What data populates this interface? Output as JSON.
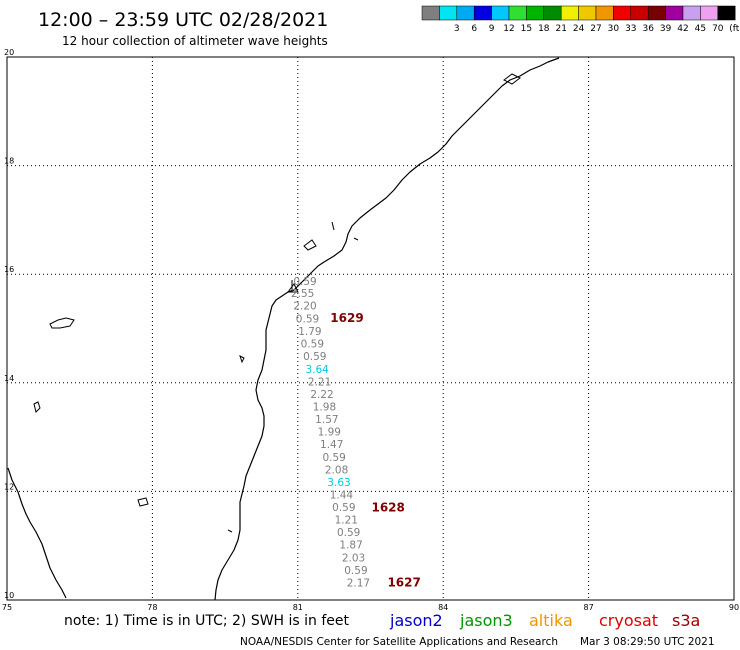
{
  "header": {
    "title": "12:00 – 23:59 UTC 02/28/2021",
    "subtitle": "12 hour collection of altimeter wave heights"
  },
  "color_scale": {
    "unit": "(ft)",
    "bins": [
      {
        "label": "",
        "color": "#7f7f7f"
      },
      {
        "label": "3",
        "color": "#00e5f0"
      },
      {
        "label": "6",
        "color": "#00aaf0"
      },
      {
        "label": "9",
        "color": "#0000e0"
      },
      {
        "label": "12",
        "color": "#00c8ff"
      },
      {
        "label": "15",
        "color": "#30e030"
      },
      {
        "label": "18",
        "color": "#00b400"
      },
      {
        "label": "21",
        "color": "#008c00"
      },
      {
        "label": "24",
        "color": "#f0f000"
      },
      {
        "label": "27",
        "color": "#f0c800"
      },
      {
        "label": "30",
        "color": "#f09600"
      },
      {
        "label": "33",
        "color": "#f00000"
      },
      {
        "label": "36",
        "color": "#c80000"
      },
      {
        "label": "39",
        "color": "#780000"
      },
      {
        "label": "42",
        "color": "#a000a0"
      },
      {
        "label": "45",
        "color": "#c8a0f0"
      },
      {
        "label": "70",
        "color": "#f0a0f0"
      },
      {
        "label": "",
        "color": "#000000"
      }
    ]
  },
  "map": {
    "lon_range": [
      75,
      90
    ],
    "lat_range": [
      10,
      20
    ],
    "lon_ticks": [
      {
        "value": 75,
        "label": "75"
      },
      {
        "value": 78,
        "label": "78"
      },
      {
        "value": 81,
        "label": "81"
      },
      {
        "value": 84,
        "label": "84"
      },
      {
        "value": 87,
        "label": "87"
      },
      {
        "value": 90,
        "label": "90"
      }
    ],
    "lat_ticks": [
      {
        "value": 20,
        "label": "20"
      },
      {
        "value": 18,
        "label": "18"
      },
      {
        "value": 16,
        "label": "16"
      },
      {
        "value": 14,
        "label": "14"
      },
      {
        "value": 12,
        "label": "12"
      },
      {
        "value": 10,
        "label": "10"
      }
    ],
    "grid": "dotted",
    "grid_color": "#000000",
    "coastline_color": "#000000"
  },
  "observations": [
    {
      "lon": 81.15,
      "lat": 15.8,
      "value": "0.59",
      "color": "#7f7f7f"
    },
    {
      "lon": 81.1,
      "lat": 15.58,
      "value": "2.55",
      "color": "#7f7f7f"
    },
    {
      "lon": 81.15,
      "lat": 15.35,
      "value": "2.20",
      "color": "#7f7f7f"
    },
    {
      "lon": 81.2,
      "lat": 15.11,
      "value": "0.59",
      "color": "#7f7f7f"
    },
    {
      "lon": 81.25,
      "lat": 14.88,
      "value": "1.79",
      "color": "#7f7f7f"
    },
    {
      "lon": 81.3,
      "lat": 14.65,
      "value": "0.59",
      "color": "#7f7f7f"
    },
    {
      "lon": 81.35,
      "lat": 14.42,
      "value": "0.59",
      "color": "#7f7f7f"
    },
    {
      "lon": 81.4,
      "lat": 14.18,
      "value": "3.64",
      "color": "#00c8e8"
    },
    {
      "lon": 81.45,
      "lat": 13.95,
      "value": "2.21",
      "color": "#7f7f7f"
    },
    {
      "lon": 81.5,
      "lat": 13.72,
      "value": "2.22",
      "color": "#7f7f7f"
    },
    {
      "lon": 81.55,
      "lat": 13.49,
      "value": "1.98",
      "color": "#7f7f7f"
    },
    {
      "lon": 81.6,
      "lat": 13.26,
      "value": "1.57",
      "color": "#7f7f7f"
    },
    {
      "lon": 81.65,
      "lat": 13.03,
      "value": "1.99",
      "color": "#7f7f7f"
    },
    {
      "lon": 81.7,
      "lat": 12.8,
      "value": "1.47",
      "color": "#7f7f7f"
    },
    {
      "lon": 81.75,
      "lat": 12.56,
      "value": "0.59",
      "color": "#7f7f7f"
    },
    {
      "lon": 81.8,
      "lat": 12.33,
      "value": "2.08",
      "color": "#7f7f7f"
    },
    {
      "lon": 81.85,
      "lat": 12.1,
      "value": "3.63",
      "color": "#00c8e8"
    },
    {
      "lon": 81.9,
      "lat": 11.87,
      "value": "1.44",
      "color": "#7f7f7f"
    },
    {
      "lon": 81.95,
      "lat": 11.64,
      "value": "0.59",
      "color": "#7f7f7f"
    },
    {
      "lon": 82.0,
      "lat": 11.41,
      "value": "1.21",
      "color": "#7f7f7f"
    },
    {
      "lon": 82.05,
      "lat": 11.18,
      "value": "0.59",
      "color": "#7f7f7f"
    },
    {
      "lon": 82.1,
      "lat": 10.95,
      "value": "1.87",
      "color": "#7f7f7f"
    },
    {
      "lon": 82.15,
      "lat": 10.71,
      "value": "2.03",
      "color": "#7f7f7f"
    },
    {
      "lon": 82.2,
      "lat": 10.48,
      "value": "0.59",
      "color": "#7f7f7f"
    },
    {
      "lon": 82.25,
      "lat": 10.25,
      "value": "2.17",
      "color": "#7f7f7f"
    }
  ],
  "pass_labels": [
    {
      "lon": 81.67,
      "lat": 15.12,
      "text": "1629",
      "color": "#800000"
    },
    {
      "lon": 82.52,
      "lat": 11.63,
      "text": "1628",
      "color": "#800000"
    },
    {
      "lon": 82.85,
      "lat": 10.25,
      "text": "1627",
      "color": "#800000"
    }
  ],
  "footer": {
    "note": "note:  1) Time is in UTC;  2) SWH is in feet",
    "legend": [
      {
        "label": "jason2",
        "color": "#0000c8"
      },
      {
        "label": "jason3",
        "color": "#009600"
      },
      {
        "label": "altika",
        "color": "#f09600"
      },
      {
        "label": "cryosat",
        "color": "#e00000"
      },
      {
        "label": "s3a",
        "color": "#a00000"
      }
    ],
    "credit": "NOAA/NESDIS Center for Satellite Applications and Research",
    "timestamp": "Mar  3 08:29:50 UTC 2021"
  }
}
